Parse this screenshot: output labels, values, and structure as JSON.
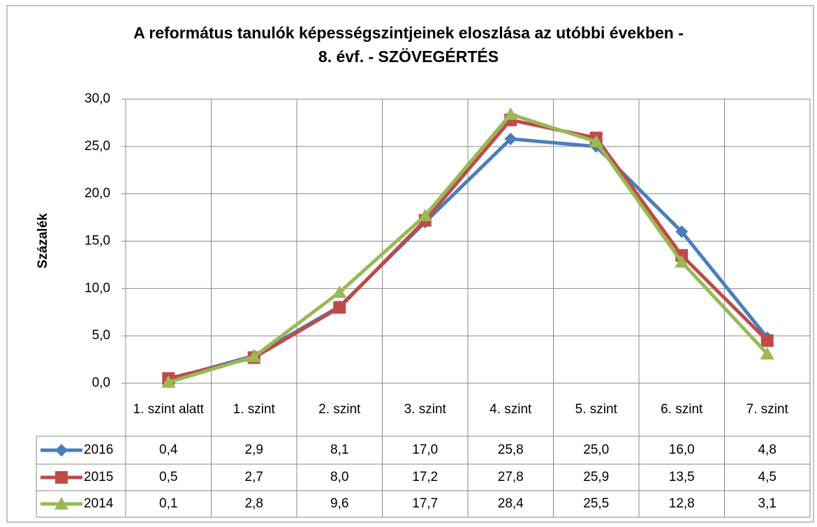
{
  "chart_data": {
    "type": "line",
    "title": "A református tanulók képességszintjeinek eloszlása az utóbbi években - 8. évf. - SZÖVEGÉRTÉS",
    "y_label": "Százalék",
    "categories": [
      "1. szint alatt",
      "1. szint",
      "2. szint",
      "3. szint",
      "4. szint",
      "5. szint",
      "6. szint",
      "7. szint"
    ],
    "series": [
      {
        "name": "2016",
        "color": "#4a7ebb",
        "marker": "diamond",
        "values": [
          0.4,
          2.9,
          8.1,
          17.0,
          25.8,
          25.0,
          16.0,
          4.8
        ],
        "value_labels": [
          "0,4",
          "2,9",
          "8,1",
          "17,0",
          "25,8",
          "25,0",
          "16,0",
          "4,8"
        ]
      },
      {
        "name": "2015",
        "color": "#be4b48",
        "marker": "square",
        "values": [
          0.5,
          2.7,
          8.0,
          17.2,
          27.8,
          25.9,
          13.5,
          4.5
        ],
        "value_labels": [
          "0,5",
          "2,7",
          "8,0",
          "17,2",
          "27,8",
          "25,9",
          "13,5",
          "4,5"
        ]
      },
      {
        "name": "2014",
        "color": "#98b954",
        "marker": "triangle",
        "values": [
          0.1,
          2.8,
          9.6,
          17.7,
          28.4,
          25.5,
          12.8,
          3.1
        ],
        "value_labels": [
          "0,1",
          "2,8",
          "9,6",
          "17,7",
          "28,4",
          "25,5",
          "12,8",
          "3,1"
        ]
      }
    ],
    "ylim": [
      0,
      30
    ],
    "yticks": [
      {
        "value": 0,
        "label": "0,0"
      },
      {
        "value": 5,
        "label": "5,0"
      },
      {
        "value": 10,
        "label": "10,0"
      },
      {
        "value": 15,
        "label": "15,0"
      },
      {
        "value": 20,
        "label": "20,0"
      },
      {
        "value": 25,
        "label": "25,0"
      },
      {
        "value": 30,
        "label": "30,0"
      }
    ],
    "grid": true
  }
}
